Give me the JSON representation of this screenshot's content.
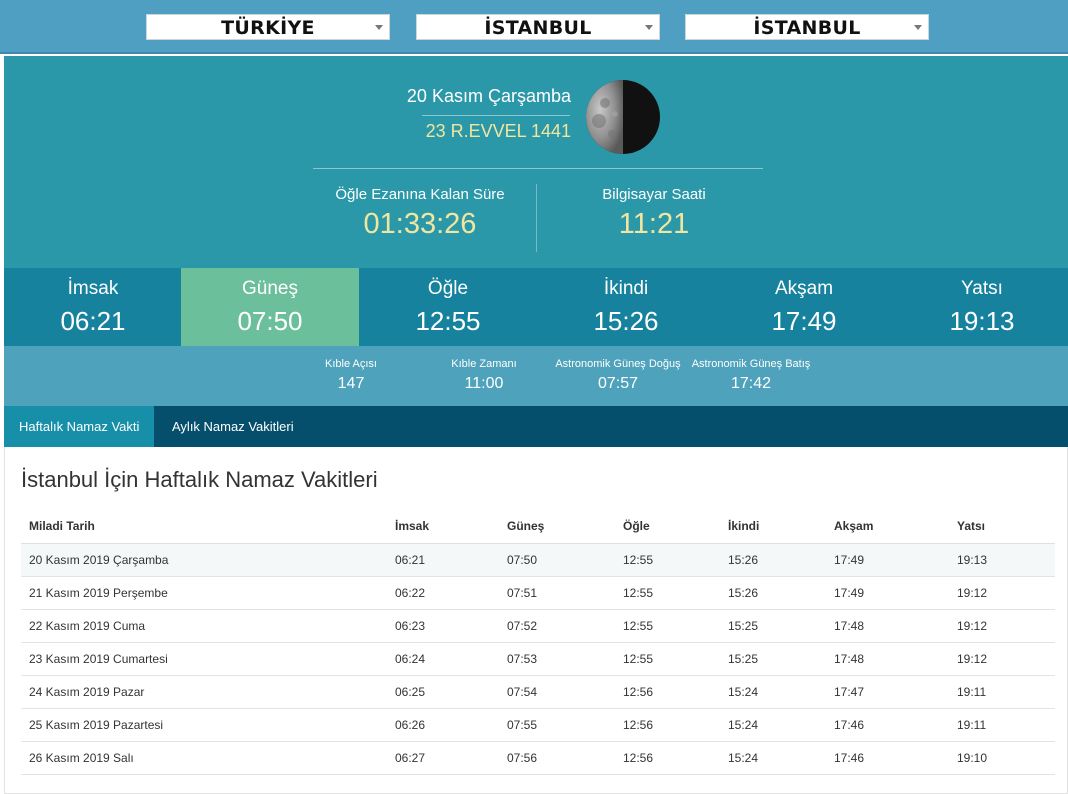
{
  "location": {
    "country": "TÜRKİYE",
    "province": "İSTANBUL",
    "district": "İSTANBUL"
  },
  "date": {
    "gregorian": "20 Kasım Çarşamba",
    "hijri": "23 R.EVVEL 1441"
  },
  "countdown": {
    "label": "Öğle Ezanına Kalan Süre",
    "value": "01:33:26"
  },
  "clock": {
    "label": "Bilgisayar Saati",
    "value": "11:21"
  },
  "times": [
    {
      "name": "İmsak",
      "time": "06:21"
    },
    {
      "name": "Güneş",
      "time": "07:50"
    },
    {
      "name": "Öğle",
      "time": "12:55"
    },
    {
      "name": "İkindi",
      "time": "15:26"
    },
    {
      "name": "Akşam",
      "time": "17:49"
    },
    {
      "name": "Yatsı",
      "time": "19:13"
    }
  ],
  "extra": [
    {
      "label": "Kıble Açısı",
      "value": "147"
    },
    {
      "label": "Kıble Zamanı",
      "value": "11:00"
    },
    {
      "label": "Astronomik Güneş Doğuş",
      "value": "07:57"
    },
    {
      "label": "Astronomik Güneş Batış",
      "value": "17:42"
    }
  ],
  "tabs": [
    {
      "label": "Haftalık Namaz Vakti"
    },
    {
      "label": "Aylık Namaz Vakitleri"
    }
  ],
  "weekly": {
    "title": "İstanbul İçin Haftalık Namaz Vakitleri",
    "headers": [
      "Miladi Tarih",
      "İmsak",
      "Güneş",
      "Öğle",
      "İkindi",
      "Akşam",
      "Yatsı"
    ],
    "rows": [
      [
        "20 Kasım 2019 Çarşamba",
        "06:21",
        "07:50",
        "12:55",
        "15:26",
        "17:49",
        "19:13"
      ],
      [
        "21 Kasım 2019 Perşembe",
        "06:22",
        "07:51",
        "12:55",
        "15:26",
        "17:49",
        "19:12"
      ],
      [
        "22 Kasım 2019 Cuma",
        "06:23",
        "07:52",
        "12:55",
        "15:25",
        "17:48",
        "19:12"
      ],
      [
        "23 Kasım 2019 Cumartesi",
        "06:24",
        "07:53",
        "12:55",
        "15:25",
        "17:48",
        "19:12"
      ],
      [
        "24 Kasım 2019 Pazar",
        "06:25",
        "07:54",
        "12:56",
        "15:24",
        "17:47",
        "19:11"
      ],
      [
        "25 Kasım 2019 Pazartesi",
        "06:26",
        "07:55",
        "12:56",
        "15:24",
        "17:46",
        "19:11"
      ],
      [
        "26 Kasım 2019 Salı",
        "06:27",
        "07:56",
        "12:56",
        "15:24",
        "17:46",
        "19:10"
      ]
    ]
  },
  "colors": {
    "topbar": "#4f9fc2",
    "panel": "#2b98a9",
    "times_bar": "#16829d",
    "active_time": "#6bbf9a",
    "extra_bar": "#4fa2bb",
    "tab_bar": "#064f6c",
    "active_tab": "#178fa8",
    "highlight_text": "#f0e6a0"
  }
}
